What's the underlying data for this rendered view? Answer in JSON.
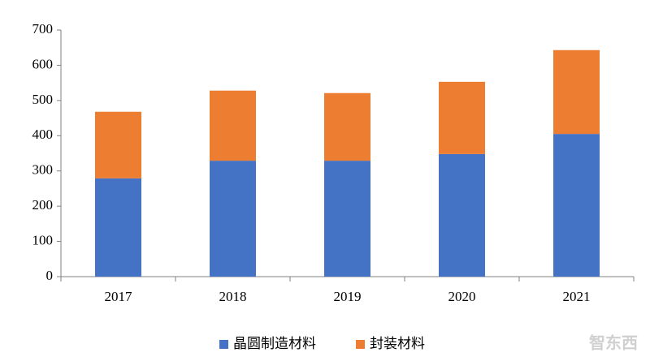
{
  "chart_data": {
    "type": "stacked_bar",
    "categories": [
      "2017",
      "2018",
      "2019",
      "2020",
      "2021"
    ],
    "series": [
      {
        "name": "晶圆制造材料",
        "color": "#4472c4",
        "values": [
          279,
          329,
          329,
          348,
          405
        ]
      },
      {
        "name": "封装材料",
        "color": "#ed7d31",
        "values": [
          189,
          199,
          192,
          205,
          238
        ]
      }
    ],
    "ylim": [
      0,
      700
    ],
    "yticks": [
      0,
      100,
      200,
      300,
      400,
      500,
      600,
      700
    ],
    "grid": false,
    "legend": "bottom",
    "watermark": "智东西"
  }
}
